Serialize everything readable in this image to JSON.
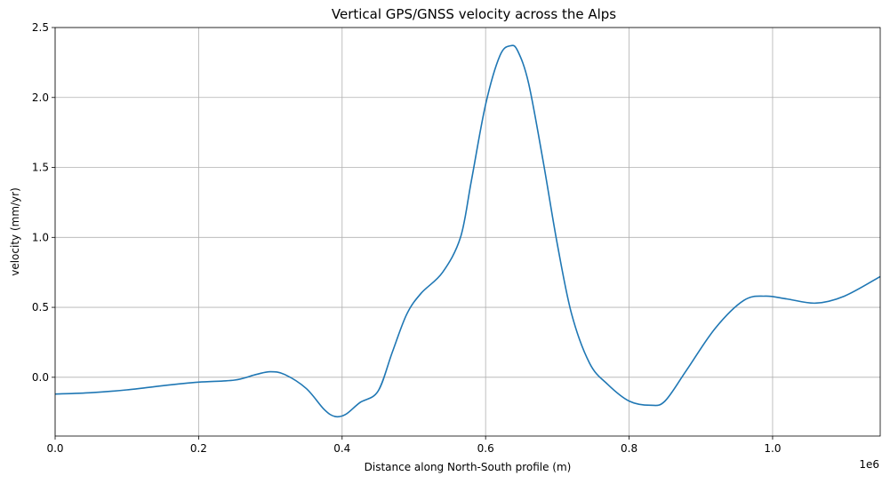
{
  "chart_data": {
    "type": "line",
    "title": "Vertical GPS/GNSS velocity across the Alps",
    "xlabel": "Distance along North-South profile (m)",
    "ylabel": "velocity (mm/yr)",
    "x_offset_label": "1e6",
    "xlim": [
      0,
      1150000
    ],
    "ylim": [
      -0.42,
      2.5
    ],
    "grid": true,
    "x_ticks": [
      {
        "value": 0,
        "label": "0.0"
      },
      {
        "value": 200000,
        "label": "0.2"
      },
      {
        "value": 400000,
        "label": "0.4"
      },
      {
        "value": 600000,
        "label": "0.6"
      },
      {
        "value": 800000,
        "label": "0.8"
      },
      {
        "value": 1000000,
        "label": "1.0"
      }
    ],
    "y_ticks": [
      {
        "value": 0.0,
        "label": "0.0"
      },
      {
        "value": 0.5,
        "label": "0.5"
      },
      {
        "value": 1.0,
        "label": "1.0"
      },
      {
        "value": 1.5,
        "label": "1.5"
      },
      {
        "value": 2.0,
        "label": "2.0"
      },
      {
        "value": 2.5,
        "label": "2.5"
      }
    ],
    "series": [
      {
        "color": "#1f77b4",
        "x": [
          0,
          50000,
          100000,
          150000,
          200000,
          250000,
          280000,
          300000,
          320000,
          350000,
          375000,
          390000,
          405000,
          425000,
          450000,
          470000,
          490000,
          510000,
          540000,
          565000,
          580000,
          600000,
          620000,
          635000,
          645000,
          660000,
          680000,
          700000,
          720000,
          745000,
          770000,
          800000,
          830000,
          850000,
          880000,
          920000,
          960000,
          990000,
          1020000,
          1060000,
          1100000,
          1150000
        ],
        "y": [
          -0.12,
          -0.11,
          -0.09,
          -0.06,
          -0.035,
          -0.02,
          0.02,
          0.04,
          0.02,
          -0.08,
          -0.23,
          -0.28,
          -0.265,
          -0.18,
          -0.1,
          0.18,
          0.45,
          0.6,
          0.75,
          1.0,
          1.4,
          1.95,
          2.3,
          2.37,
          2.33,
          2.1,
          1.55,
          0.95,
          0.45,
          0.1,
          -0.05,
          -0.17,
          -0.2,
          -0.17,
          0.05,
          0.35,
          0.55,
          0.58,
          0.56,
          0.53,
          0.58,
          0.72
        ]
      }
    ]
  }
}
